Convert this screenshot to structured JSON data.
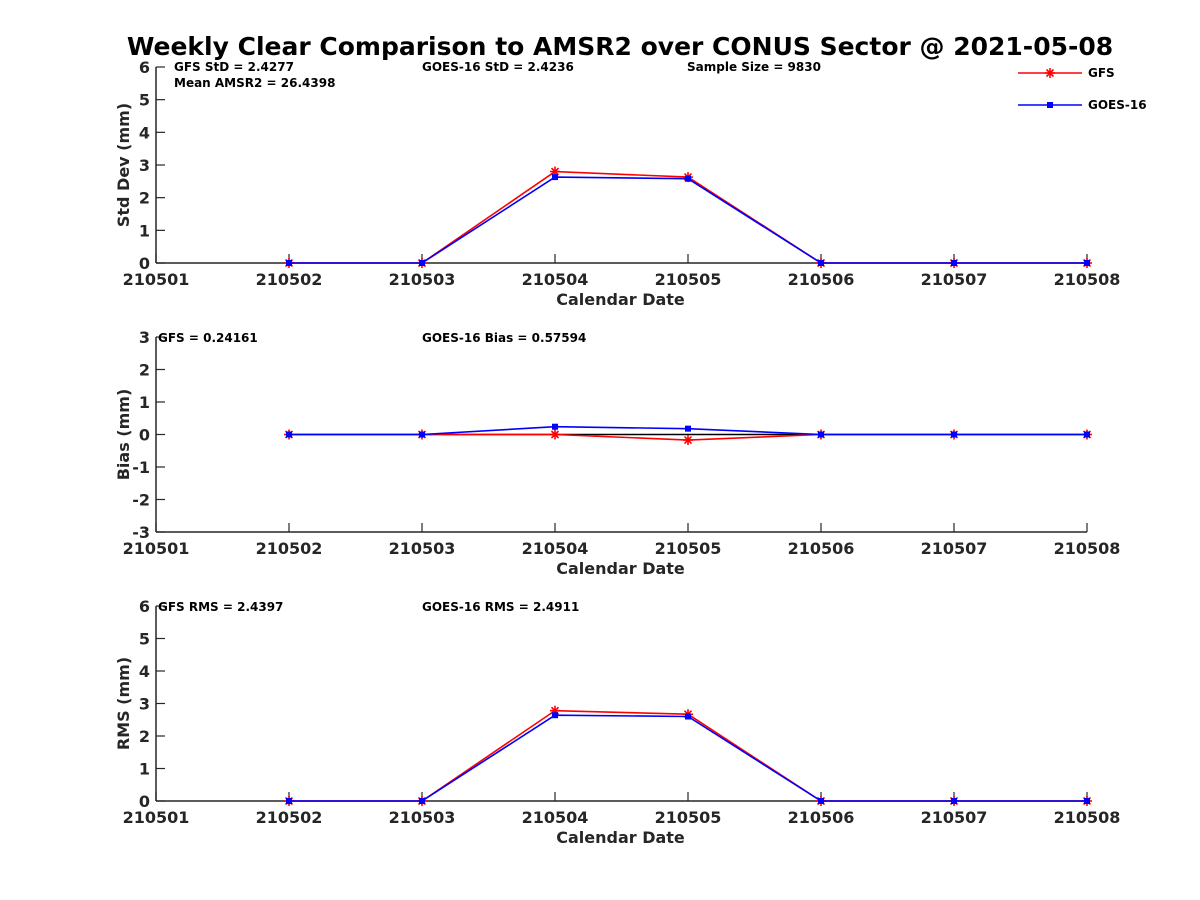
{
  "figure_title": "Weekly Clear Comparison to AMSR2 over CONUS Sector @ 2021-05-08",
  "legend": [
    {
      "name": "GFS",
      "color": "#ff0000",
      "marker": "asterisk"
    },
    {
      "name": "GOES-16",
      "color": "#0000ff",
      "marker": "square"
    }
  ],
  "chart_data": [
    {
      "type": "line",
      "xlabel": "Calendar Date",
      "ylabel": "Std Dev (mm)",
      "x": [
        "210501",
        "210502",
        "210503",
        "210504",
        "210505",
        "210506",
        "210507",
        "210508"
      ],
      "xticks": [
        "210501",
        "210502",
        "210503",
        "210504",
        "210505",
        "210506",
        "210507",
        "210508"
      ],
      "ylim": [
        0,
        6
      ],
      "yticks": [
        "0",
        "1",
        "2",
        "3",
        "4",
        "5",
        "6"
      ],
      "grid": false,
      "annotations": [
        "GFS StD = 2.4277",
        "Mean AMSR2 = 26.4398",
        "GOES-16 StD = 2.4236",
        "Sample Size = 9830"
      ],
      "series": [
        {
          "name": "GFS",
          "color": "#ff0000",
          "values": [
            null,
            0,
            0,
            2.8,
            2.63,
            0,
            0,
            0
          ]
        },
        {
          "name": "GOES-16",
          "color": "#0000ff",
          "values": [
            null,
            0,
            0,
            2.63,
            2.58,
            0,
            0,
            0
          ]
        }
      ]
    },
    {
      "type": "line",
      "xlabel": "Calendar Date",
      "ylabel": "Bias (mm)",
      "x": [
        "210501",
        "210502",
        "210503",
        "210504",
        "210505",
        "210506",
        "210507",
        "210508"
      ],
      "xticks": [
        "210501",
        "210502",
        "210503",
        "210504",
        "210505",
        "210506",
        "210507",
        "210508"
      ],
      "ylim": [
        -3,
        3
      ],
      "yticks": [
        "-3",
        "-2",
        "-1",
        "0",
        "1",
        "2",
        "3"
      ],
      "grid": false,
      "zero_line": true,
      "annotations": [
        "GFS = 0.24161",
        "GOES-16 Bias  = 0.57594"
      ],
      "series": [
        {
          "name": "GFS",
          "color": "#ff0000",
          "values": [
            null,
            0,
            0,
            0,
            -0.17,
            0,
            0,
            0
          ]
        },
        {
          "name": "GOES-16",
          "color": "#0000ff",
          "values": [
            null,
            0,
            0,
            0.24,
            0.18,
            0,
            0,
            0
          ]
        }
      ]
    },
    {
      "type": "line",
      "xlabel": "Calendar Date",
      "ylabel": "RMS (mm)",
      "x": [
        "210501",
        "210502",
        "210503",
        "210504",
        "210505",
        "210506",
        "210507",
        "210508"
      ],
      "xticks": [
        "210501",
        "210502",
        "210503",
        "210504",
        "210505",
        "210506",
        "210507",
        "210508"
      ],
      "ylim": [
        0,
        6
      ],
      "yticks": [
        "0",
        "1",
        "2",
        "3",
        "4",
        "5",
        "6"
      ],
      "grid": false,
      "annotations": [
        "GFS RMS = 2.4397",
        "GOES-16 RMS = 2.4911"
      ],
      "series": [
        {
          "name": "GFS",
          "color": "#ff0000",
          "values": [
            null,
            0,
            0,
            2.78,
            2.67,
            0,
            0,
            0
          ]
        },
        {
          "name": "GOES-16",
          "color": "#0000ff",
          "values": [
            null,
            0,
            0,
            2.64,
            2.6,
            0,
            0,
            0
          ]
        }
      ]
    }
  ]
}
